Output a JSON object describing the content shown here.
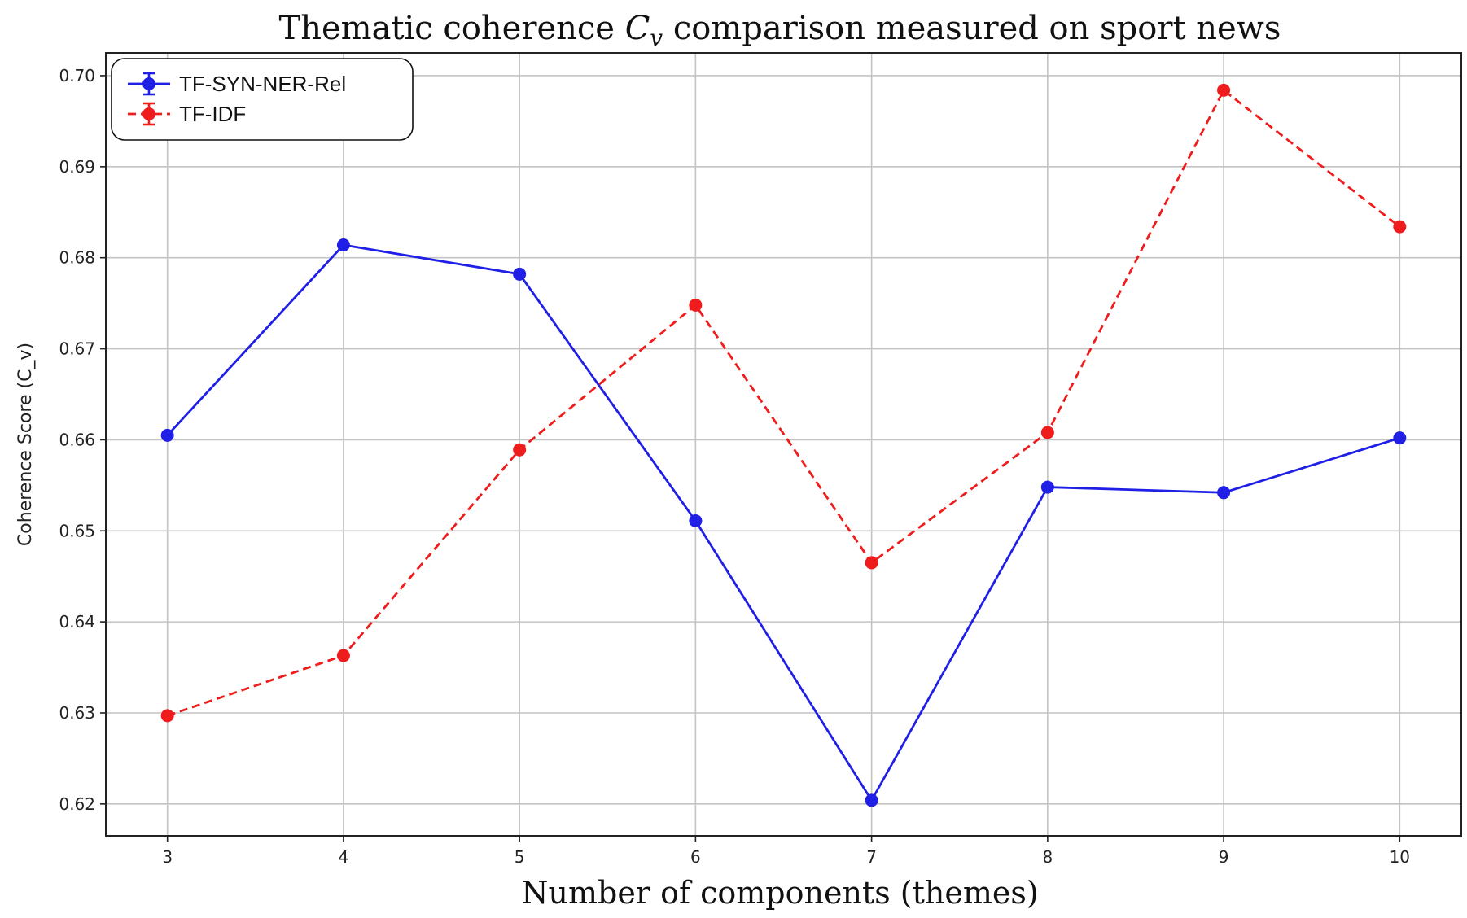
{
  "chart_data": {
    "type": "line",
    "title_prefix": "Thematic coherence ",
    "title_symbol": "C",
    "title_subscript": "v",
    "title_suffix": " comparison measured on sport news",
    "xlabel": "Number of components (themes)",
    "ylabel": "Coherence Score (C_v)",
    "x": [
      3,
      4,
      5,
      6,
      7,
      8,
      9,
      10
    ],
    "xticks": [
      "3",
      "4",
      "5",
      "6",
      "7",
      "8",
      "9",
      "10"
    ],
    "xlim": [
      2.65,
      10.35
    ],
    "ylim": [
      0.6165,
      0.7025
    ],
    "yticks": [
      "0.62",
      "0.63",
      "0.64",
      "0.65",
      "0.66",
      "0.67",
      "0.68",
      "0.69",
      "0.70"
    ],
    "grid": true,
    "legend_position": "top-left",
    "series": [
      {
        "name": "TF-SYN-NER-Rel",
        "color": "#1f1fe6",
        "style": "solid",
        "values": [
          0.6605,
          0.6814,
          0.6782,
          0.6511,
          0.6204,
          0.6548,
          0.6542,
          0.6602
        ]
      },
      {
        "name": "TF-IDF",
        "color": "#ee1c1c",
        "style": "dashed",
        "values": [
          0.6297,
          0.6363,
          0.6589,
          0.6748,
          0.6465,
          0.6608,
          0.6984,
          0.6834
        ]
      }
    ]
  }
}
